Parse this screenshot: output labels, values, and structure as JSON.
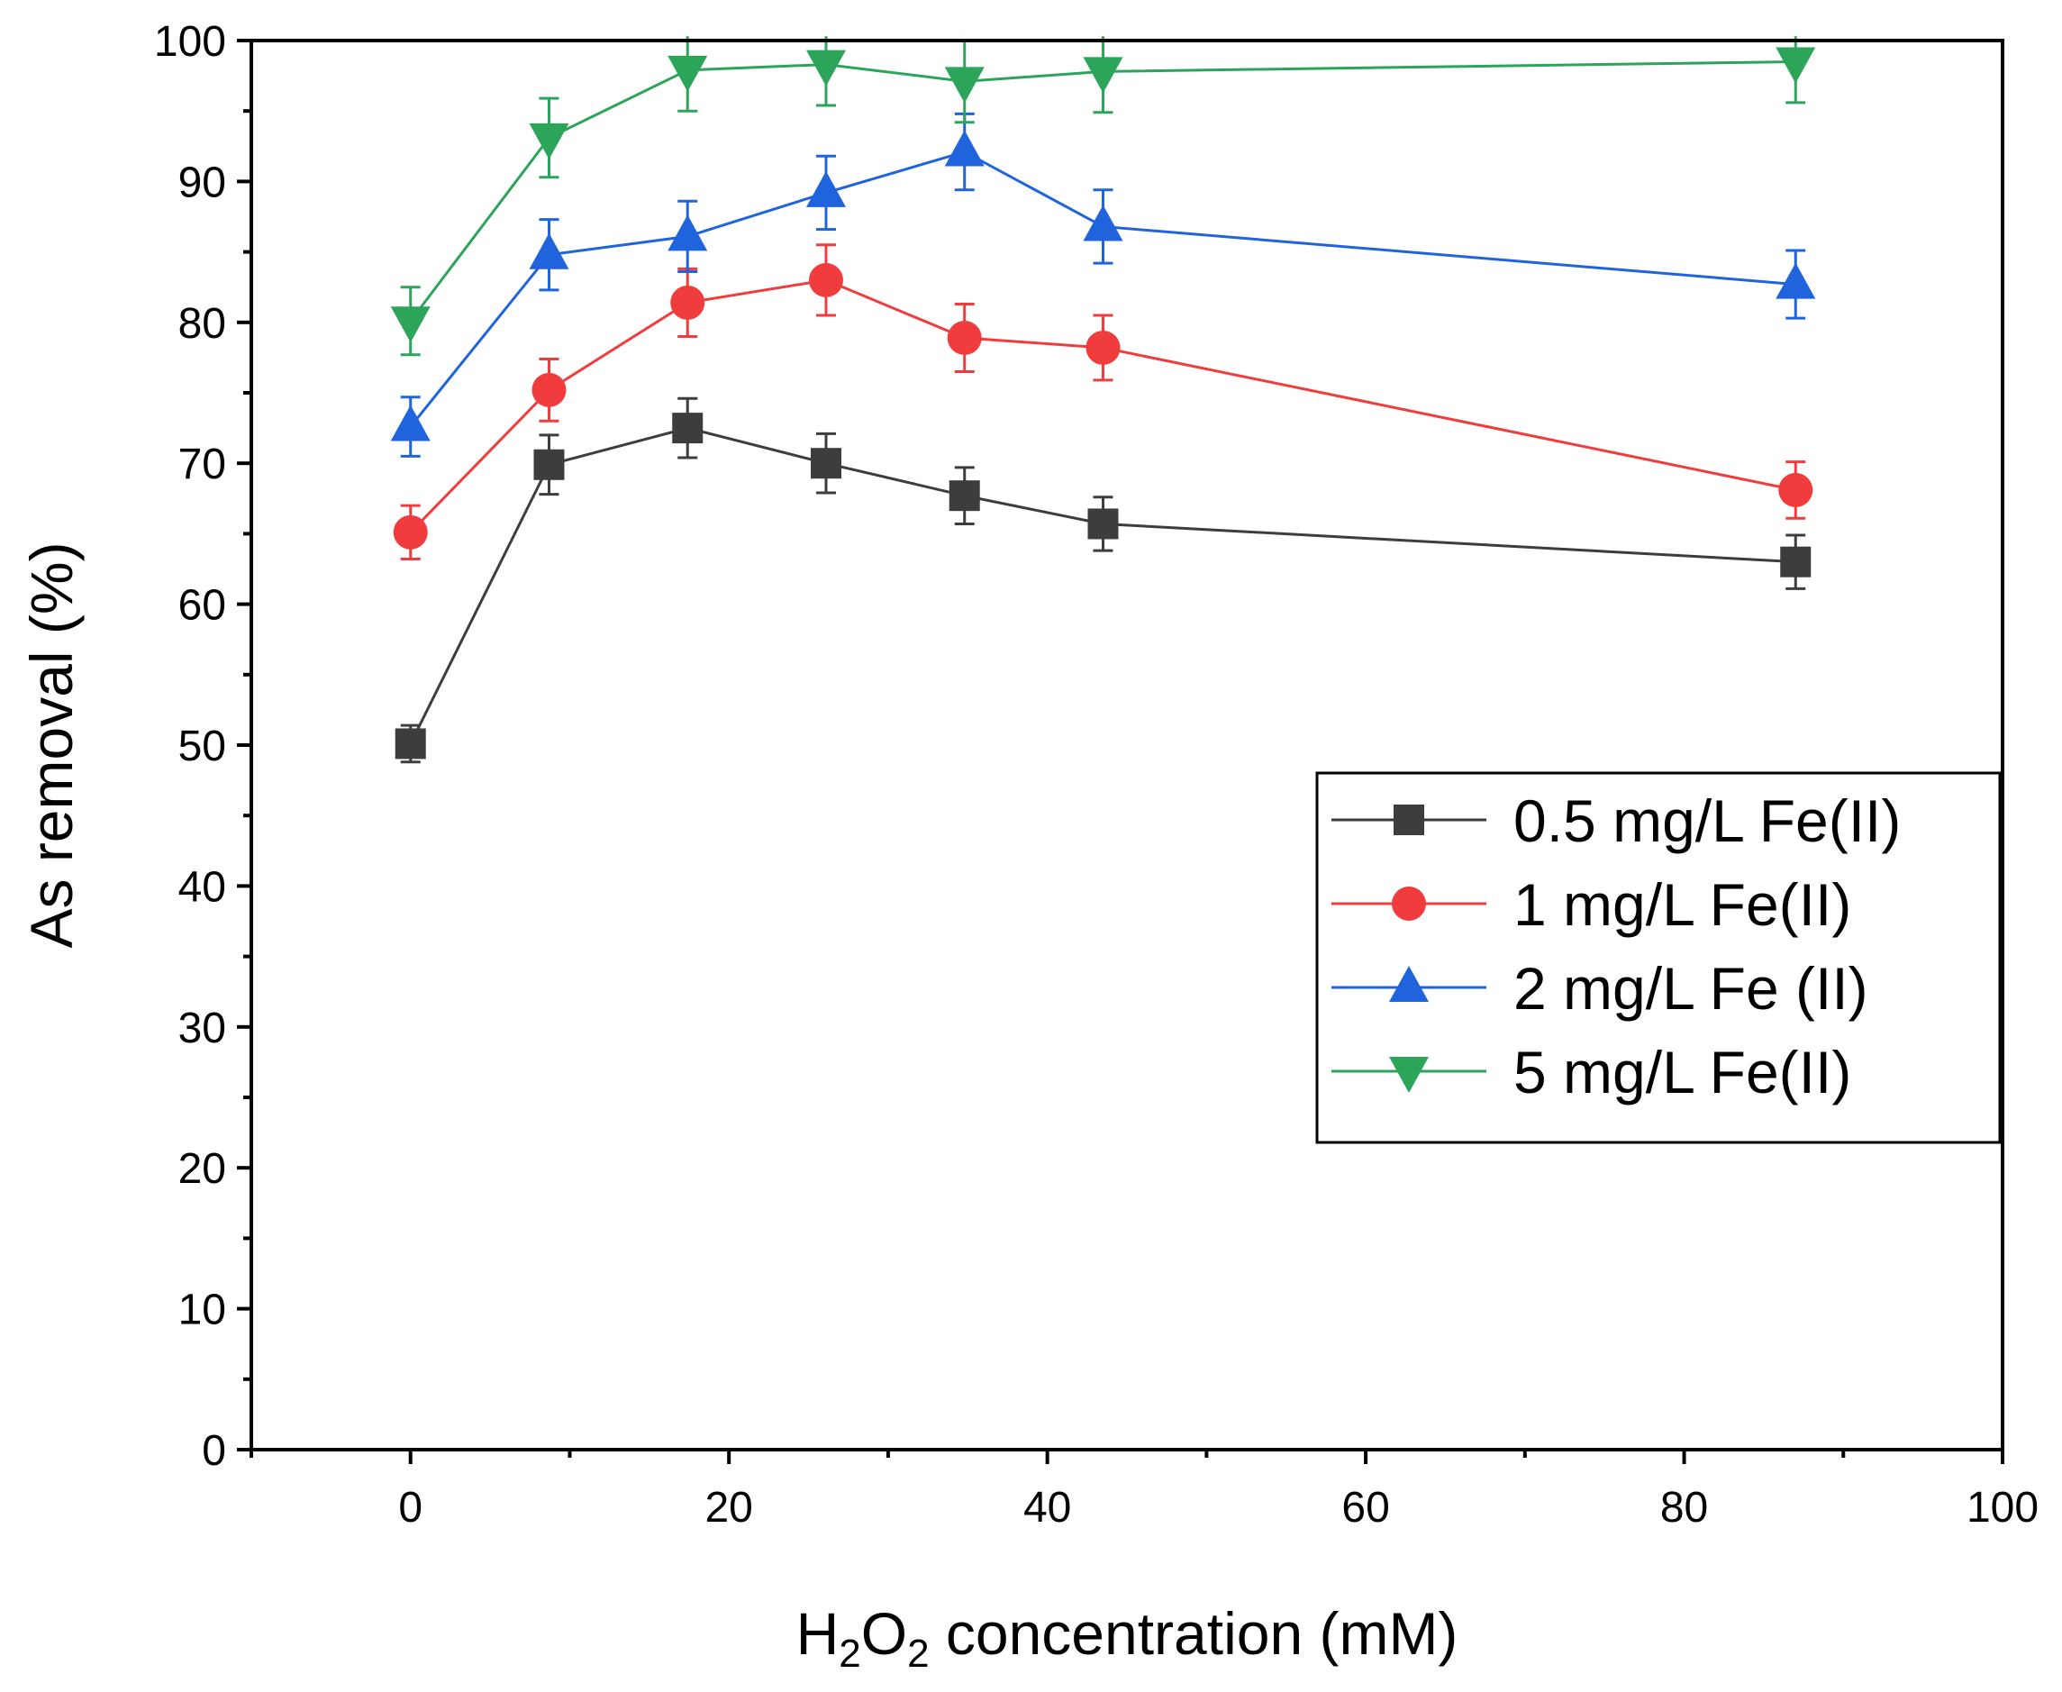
{
  "chart_data": {
    "type": "line",
    "title": "",
    "xlabel": {
      "prefix": "H",
      "sub1": "2",
      "mid": "O",
      "sub2": "2",
      "suffix": " concentration (mM)"
    },
    "ylabel": "As removal (%)",
    "xlim": [
      -10,
      100
    ],
    "ylim": [
      0,
      100
    ],
    "xticks": [
      0,
      20,
      40,
      60,
      80,
      100
    ],
    "yticks": [
      0,
      10,
      20,
      30,
      40,
      50,
      60,
      70,
      80,
      90,
      100
    ],
    "legend_position": "center-right",
    "x": [
      0,
      8.7,
      17.4,
      26.1,
      34.8,
      43.5,
      87
    ],
    "series": [
      {
        "name": "0.5 mg/L Fe(II)",
        "color": "#3d3d3d",
        "marker": "square",
        "values": [
          50.1,
          69.9,
          72.5,
          70.0,
          67.7,
          65.7,
          63.0
        ],
        "errors": [
          1.3,
          2.1,
          2.1,
          2.1,
          2.0,
          1.9,
          1.9
        ]
      },
      {
        "name": "1 mg/L Fe(II)",
        "color": "#f03c3c",
        "marker": "circle",
        "values": [
          65.1,
          75.2,
          81.4,
          83.0,
          78.9,
          78.2,
          68.1
        ],
        "errors": [
          1.9,
          2.2,
          2.4,
          2.5,
          2.4,
          2.3,
          2.0
        ]
      },
      {
        "name": "2 mg/L Fe (II)",
        "color": "#1f64dc",
        "marker": "triangle-up",
        "values": [
          72.6,
          84.8,
          86.1,
          89.2,
          92.1,
          86.8,
          82.7
        ],
        "errors": [
          2.1,
          2.5,
          2.5,
          2.6,
          2.7,
          2.6,
          2.4
        ]
      },
      {
        "name": "5 mg/L Fe(II)",
        "color": "#2ca55a",
        "marker": "triangle-down",
        "values": [
          80.1,
          93.1,
          97.9,
          98.3,
          97.1,
          97.8,
          98.5
        ],
        "errors": [
          2.4,
          2.8,
          2.9,
          2.9,
          2.9,
          2.9,
          2.9
        ]
      }
    ]
  }
}
